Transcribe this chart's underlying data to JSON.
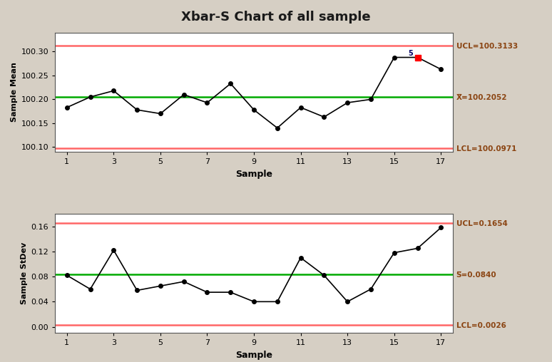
{
  "title": "Xbar-S Chart of all sample",
  "background_color": "#d6cfc4",
  "plot_bg_color": "#ffffff",
  "xbar_samples": [
    1,
    2,
    3,
    4,
    5,
    6,
    7,
    8,
    9,
    10,
    11,
    12,
    13,
    14,
    15,
    16,
    17
  ],
  "xbar_values": [
    100.183,
    100.205,
    100.218,
    100.178,
    100.17,
    100.21,
    100.193,
    100.233,
    100.178,
    100.14,
    100.183,
    100.163,
    100.193,
    100.2,
    100.288,
    100.288,
    100.263
  ],
  "xbar_outliers": [
    16
  ],
  "xbar_outlier_values": [
    100.288
  ],
  "xbar_UCL": 100.3133,
  "xbar_CL": 100.2052,
  "xbar_LCL": 100.0971,
  "xbar_ylabel": "Sample Mean",
  "xbar_ylim": [
    100.09,
    100.34
  ],
  "xbar_yticks": [
    100.1,
    100.15,
    100.2,
    100.25,
    100.3
  ],
  "s_samples": [
    1,
    2,
    3,
    4,
    5,
    6,
    7,
    8,
    9,
    10,
    11,
    12,
    13,
    14,
    15,
    16,
    17
  ],
  "s_values": [
    0.082,
    0.06,
    0.122,
    0.058,
    0.065,
    0.072,
    0.055,
    0.055,
    0.04,
    0.04,
    0.11,
    0.082,
    0.04,
    0.06,
    0.118,
    0.125,
    0.158
  ],
  "s_UCL": 0.1654,
  "s_CL": 0.084,
  "s_LCL": 0.0026,
  "s_ylabel": "Sample StDev",
  "s_ylim": [
    -0.01,
    0.18
  ],
  "s_yticks": [
    0.0,
    0.04,
    0.08,
    0.12,
    0.16
  ],
  "xlabel": "Sample",
  "xticks": [
    1,
    3,
    5,
    7,
    9,
    11,
    13,
    15,
    17
  ],
  "line_color": "#000000",
  "ucl_color": "#ff6666",
  "lcl_color": "#ff6666",
  "cl_color": "#00aa00",
  "outlier_color": "#ff0000",
  "label_color": "#8B4513",
  "ucl_xbar_label": "UCL=100.3133",
  "cl_xbar_label": "X̅=100.2052",
  "lcl_xbar_label": "LCL=100.0971",
  "ucl_s_label": "UCL=0.1654",
  "cl_s_label": "S̅=0.0840",
  "lcl_s_label": "LCL=0.0026"
}
